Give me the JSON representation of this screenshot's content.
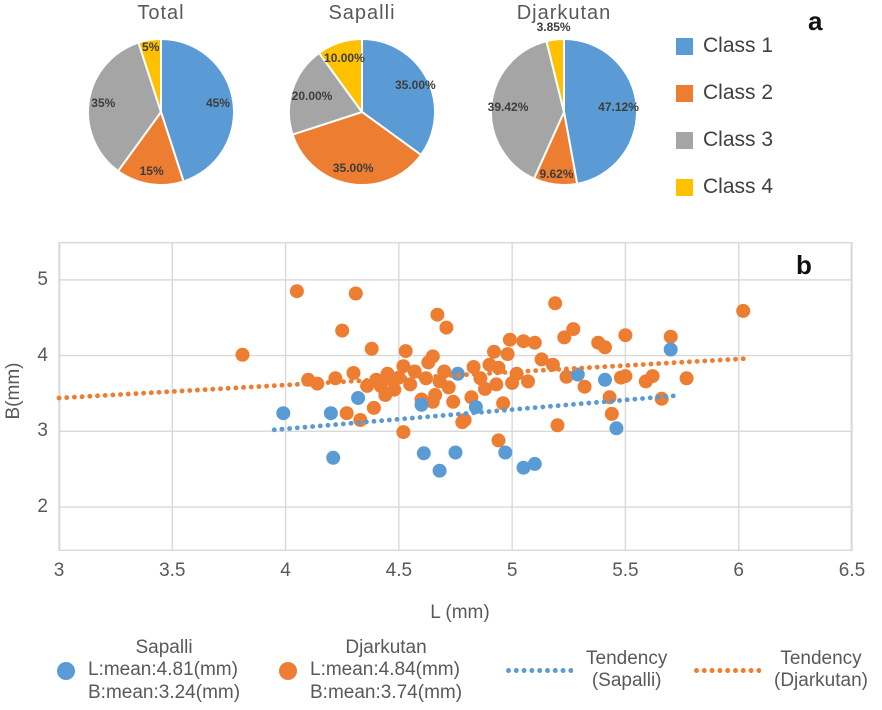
{
  "panel_labels": {
    "a": "a",
    "b": "b"
  },
  "class_colors": [
    "#5B9BD5",
    "#ED7D31",
    "#A5A5A5",
    "#FFC000"
  ],
  "class_legend": {
    "items": [
      {
        "label": "Class 1",
        "color": "#5B9BD5"
      },
      {
        "label": "Class 2",
        "color": "#ED7D31"
      },
      {
        "label": "Class 3",
        "color": "#A5A5A5"
      },
      {
        "label": "Class 4",
        "color": "#FFC000"
      }
    ]
  },
  "bottom_legend": [
    {
      "marker": "dot",
      "color": "#5B9BD5",
      "lines": [
        "Sapalli",
        "L:mean:4.81(mm)",
        "B:mean:3.24(mm)"
      ]
    },
    {
      "marker": "dot",
      "color": "#ED7D31",
      "lines": [
        "Djarkutan",
        "L:mean:4.84(mm)",
        "B:mean:3.74(mm)"
      ]
    },
    {
      "marker": "dotted-line",
      "color": "#5B9BD5",
      "lines": [
        "Tendency",
        "(Sapalli)"
      ]
    },
    {
      "marker": "dotted-line",
      "color": "#ED7D31",
      "lines": [
        "Tendency",
        "(Djarkutan)"
      ]
    }
  ],
  "chart_data": [
    {
      "type": "pie",
      "title": "Total",
      "categories": [
        "Class 1",
        "Class 2",
        "Class 3",
        "Class 4"
      ],
      "values": [
        45,
        15,
        35,
        5
      ],
      "labels": [
        "45%",
        "15%",
        "35%",
        "5%"
      ],
      "label_radius": [
        0.79,
        0.82,
        0.8,
        0.9
      ],
      "colors": [
        "#5B9BD5",
        "#ED7D31",
        "#A5A5A5",
        "#FFC000"
      ],
      "legend_position": "right"
    },
    {
      "type": "pie",
      "title": "Sapalli",
      "categories": [
        "Class 1",
        "Class 2",
        "Class 3",
        "Class 4"
      ],
      "values": [
        35,
        35,
        20,
        10
      ],
      "labels": [
        "35.00%",
        "35.00%",
        "20.00%",
        "10.00%"
      ],
      "label_radius": [
        0.82,
        0.77,
        0.72,
        0.78
      ],
      "colors": [
        "#5B9BD5",
        "#ED7D31",
        "#A5A5A5",
        "#FFC000"
      ],
      "legend_position": "right"
    },
    {
      "type": "pie",
      "title": "Djarkutan",
      "categories": [
        "Class 1",
        "Class 2",
        "Class 3",
        "Class 4"
      ],
      "values": [
        47.12,
        9.62,
        39.42,
        3.85
      ],
      "labels": [
        "47.12%",
        "9.62%",
        "39.42%",
        "3.85%"
      ],
      "label_radius": [
        0.75,
        0.85,
        0.77,
        1.18
      ],
      "colors": [
        "#5B9BD5",
        "#ED7D31",
        "#A5A5A5",
        "#FFC000"
      ],
      "legend_position": "right"
    },
    {
      "type": "scatter",
      "title": "",
      "xlabel": "L (mm)",
      "ylabel": "B(mm)",
      "xlim": [
        3,
        6.5
      ],
      "ylim": [
        1.42,
        5.5
      ],
      "x_ticks": [
        3,
        3.5,
        4,
        4.5,
        5,
        5.5,
        6,
        6.5
      ],
      "y_ticks": [
        2,
        3,
        4,
        5
      ],
      "grid": true,
      "grid_color": "#D9D9D9",
      "series": [
        {
          "name": "Djarkutan",
          "color": "#ED7D31",
          "mean_L": 4.84,
          "mean_B": 3.74,
          "points": [
            [
              3.81,
              4.01
            ],
            [
              4.05,
              4.85
            ],
            [
              4.31,
              4.82
            ],
            [
              4.25,
              4.33
            ],
            [
              4.38,
              4.09
            ],
            [
              4.1,
              3.68
            ],
            [
              4.14,
              3.63
            ],
            [
              4.22,
              3.7
            ],
            [
              4.27,
              3.24
            ],
            [
              4.33,
              3.15
            ],
            [
              4.39,
              3.31
            ],
            [
              4.3,
              3.77
            ],
            [
              4.36,
              3.6
            ],
            [
              4.44,
              3.48
            ],
            [
              4.52,
              2.99
            ],
            [
              4.4,
              3.68
            ],
            [
              4.42,
              3.6
            ],
            [
              4.45,
              3.76
            ],
            [
              4.47,
              3.68
            ],
            [
              4.48,
              3.55
            ],
            [
              4.5,
              3.71
            ],
            [
              4.52,
              3.86
            ],
            [
              4.53,
              4.06
            ],
            [
              4.55,
              3.62
            ],
            [
              4.57,
              3.79
            ],
            [
              4.6,
              3.42
            ],
            [
              4.62,
              3.7
            ],
            [
              4.63,
              3.91
            ],
            [
              4.65,
              3.99
            ],
            [
              4.65,
              3.39
            ],
            [
              4.66,
              3.48
            ],
            [
              4.68,
              3.66
            ],
            [
              4.7,
              3.79
            ],
            [
              4.72,
              3.58
            ],
            [
              4.74,
              3.39
            ],
            [
              4.67,
              4.54
            ],
            [
              4.71,
              4.37
            ],
            [
              4.79,
              3.15
            ],
            [
              4.78,
              3.12
            ],
            [
              4.82,
              3.45
            ],
            [
              4.83,
              3.85
            ],
            [
              4.86,
              3.7
            ],
            [
              4.88,
              3.56
            ],
            [
              4.9,
              3.88
            ],
            [
              4.92,
              4.05
            ],
            [
              4.93,
              3.62
            ],
            [
              4.94,
              3.84
            ],
            [
              4.94,
              2.88
            ],
            [
              4.96,
              3.37
            ],
            [
              4.98,
              4.02
            ],
            [
              4.99,
              4.21
            ],
            [
              5.0,
              3.64
            ],
            [
              5.02,
              3.76
            ],
            [
              5.05,
              4.19
            ],
            [
              5.07,
              3.66
            ],
            [
              5.1,
              4.17
            ],
            [
              5.13,
              3.95
            ],
            [
              5.18,
              3.88
            ],
            [
              5.19,
              4.69
            ],
            [
              5.2,
              3.08
            ],
            [
              5.23,
              4.24
            ],
            [
              5.24,
              3.72
            ],
            [
              5.27,
              4.35
            ],
            [
              5.32,
              3.59
            ],
            [
              5.38,
              4.17
            ],
            [
              5.41,
              4.11
            ],
            [
              5.43,
              3.45
            ],
            [
              5.44,
              3.23
            ],
            [
              5.48,
              3.71
            ],
            [
              5.5,
              4.27
            ],
            [
              5.5,
              3.73
            ],
            [
              5.59,
              3.66
            ],
            [
              5.62,
              3.73
            ],
            [
              5.66,
              3.43
            ],
            [
              5.7,
              4.25
            ],
            [
              5.77,
              3.7
            ],
            [
              6.02,
              4.59
            ]
          ]
        },
        {
          "name": "Sapalli",
          "color": "#5B9BD5",
          "mean_L": 4.81,
          "mean_B": 3.24,
          "points": [
            [
              3.99,
              3.24
            ],
            [
              4.2,
              3.24
            ],
            [
              4.21,
              2.65
            ],
            [
              4.32,
              3.44
            ],
            [
              4.6,
              3.35
            ],
            [
              4.61,
              2.71
            ],
            [
              4.68,
              2.48
            ],
            [
              4.75,
              2.72
            ],
            [
              4.76,
              3.76
            ],
            [
              4.84,
              3.32
            ],
            [
              4.97,
              2.72
            ],
            [
              5.05,
              2.52
            ],
            [
              5.1,
              2.57
            ],
            [
              5.29,
              3.75
            ],
            [
              5.41,
              3.68
            ],
            [
              5.46,
              3.04
            ],
            [
              5.7,
              4.08
            ]
          ]
        }
      ],
      "trend_lines": [
        {
          "name": "Tendency (Djarkutan)",
          "color": "#ED7D31",
          "x1": 3.0,
          "y1": 3.44,
          "x2": 6.03,
          "y2": 3.96
        },
        {
          "name": "Tendency (Sapalli)",
          "color": "#5B9BD5",
          "x1": 3.95,
          "y1": 3.02,
          "x2": 5.72,
          "y2": 3.47
        }
      ],
      "legend_position": "bottom"
    }
  ]
}
